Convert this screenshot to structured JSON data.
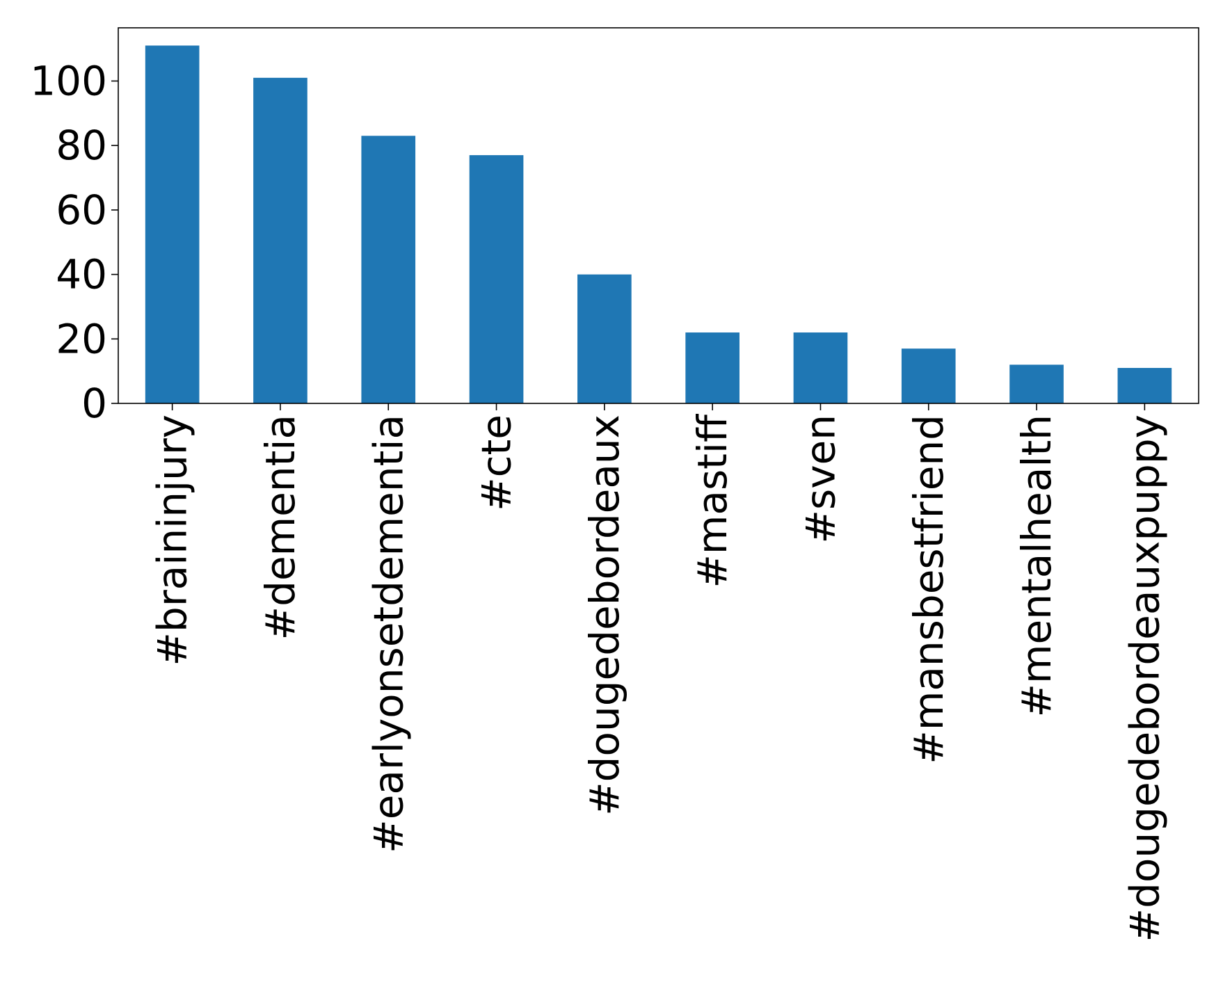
{
  "chart_data": {
    "type": "bar",
    "categories": [
      "#braininjury",
      "#dementia",
      "#earlyonsetdementia",
      "#cte",
      "#dougedebordeaux",
      "#mastiff",
      "#sven",
      "#mansbestfriend",
      "#mentalhealth",
      "#dougedebordeauxpuppy"
    ],
    "values": [
      111,
      101,
      83,
      77,
      40,
      22,
      22,
      17,
      12,
      11
    ],
    "title": "",
    "xlabel": "",
    "ylabel": "",
    "ylim": [
      0,
      116.5
    ],
    "yticks": [
      0,
      20,
      40,
      60,
      80,
      100
    ],
    "grid": false,
    "bar_color": "#1f77b4"
  }
}
